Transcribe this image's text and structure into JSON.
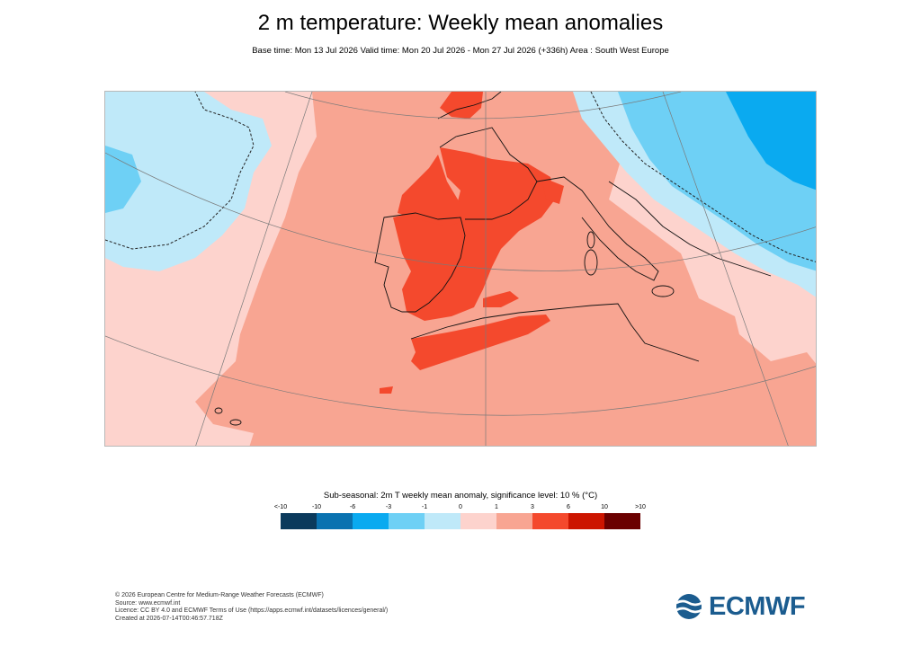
{
  "header": {
    "title": "2 m temperature: Weekly mean anomalies",
    "subtitle": "Base time: Mon 13 Jul 2026 Valid time: Mon 20 Jul 2026 - Mon 27 Jul 2026 (+336h) Area : South West Europe"
  },
  "map": {
    "area": "South West Europe",
    "palette": {
      "c_lt_m10": "#0b3a5c",
      "c_m10_m6": "#0a72b0",
      "c_m6_m3": "#0aaaf0",
      "c_m3_m1": "#6ed0f5",
      "c_m1_0": "#bfe9f9",
      "c_0_1": "#fdd3cd",
      "c_1_3": "#f8a592",
      "c_3_6": "#f4492d",
      "c_6_10": "#cc1500",
      "c_gt_10": "#6b0000"
    }
  },
  "legend": {
    "title": "Sub-seasonal: 2m T weekly mean anomaly, significance level: 10 % (°C)",
    "ticks": [
      "<-10",
      "-10",
      "-6",
      "-3",
      "-1",
      "0",
      "1",
      "3",
      "6",
      "10",
      ">10"
    ],
    "colors": [
      "#0b3a5c",
      "#0a72b0",
      "#0aaaf0",
      "#6ed0f5",
      "#bfe9f9",
      "#fdd3cd",
      "#f8a592",
      "#f4492d",
      "#cc1500",
      "#6b0000"
    ]
  },
  "footer": {
    "lines": [
      "© 2026 European Centre for Medium-Range Weather Forecasts (ECMWF)",
      "Source: www.ecmwf.int",
      "Licence: CC BY 4.0 and ECMWF Terms of Use (https://apps.ecmwf.int/datasets/licences/general/)",
      "Created at 2026-07-14T00:46:57.718Z"
    ]
  },
  "logo": {
    "text": "ECMWF",
    "color": "#1b5c8f"
  }
}
